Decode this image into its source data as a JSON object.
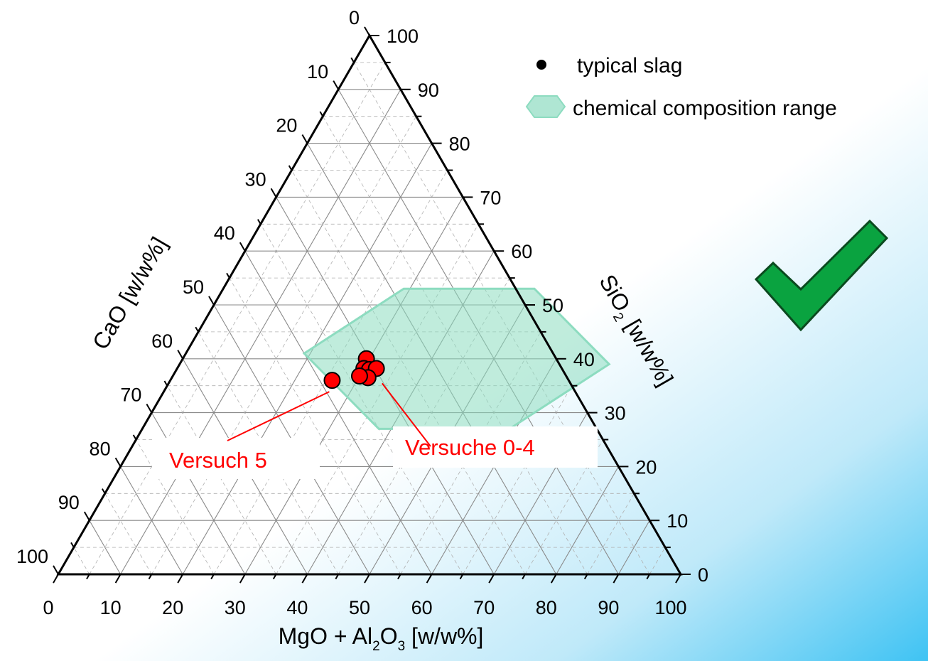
{
  "chart_data": {
    "type": "scatter",
    "subtype": "ternary",
    "axes": {
      "bottom": {
        "title_main": "MgO + Al",
        "sub1": "2",
        "mid": "O",
        "sub2": "3",
        "title_tail": " [w/w%]",
        "ticks": [
          "0",
          "10",
          "20",
          "30",
          "40",
          "50",
          "60",
          "70",
          "80",
          "90",
          "100"
        ],
        "range": [
          0,
          100
        ]
      },
      "left": {
        "title": "CaO [w/w%]",
        "ticks": [
          "0",
          "10",
          "20",
          "30",
          "40",
          "50",
          "60",
          "70",
          "80",
          "90",
          "100"
        ],
        "range": [
          0,
          100
        ]
      },
      "right": {
        "title_main": "SiO",
        "sub": "2",
        "title_tail": " [w/w%]",
        "ticks": [
          "0",
          "10",
          "20",
          "30",
          "40",
          "50",
          "60",
          "70",
          "80",
          "90",
          "100"
        ],
        "range": [
          0,
          100
        ]
      }
    },
    "grid": true,
    "legend": {
      "position": "top-right",
      "items": [
        {
          "label": "typical slag",
          "marker": "dot"
        },
        {
          "label": "chemical composition range",
          "marker": "hexagon"
        }
      ]
    },
    "composition_range": {
      "color": "#8ddcc0",
      "vertices": [
        {
          "mgo_al2o3": 50,
          "sio2": 53
        },
        {
          "mgo_al2o3": 69,
          "sio2": 39
        },
        {
          "mgo_al2o3": 59,
          "sio2": 27
        },
        {
          "mgo_al2o3": 38,
          "sio2": 27
        },
        {
          "mgo_al2o3": 19,
          "sio2": 41
        },
        {
          "mgo_al2o3": 29,
          "sio2": 53
        }
      ]
    },
    "series": [
      {
        "color": "#ff0000",
        "points": [
          {
            "mgo_al2o3": 29.5,
            "sio2": 40.0
          },
          {
            "mgo_al2o3": 30.0,
            "sio2": 38.2
          },
          {
            "mgo_al2o3": 31.0,
            "sio2": 38.0
          },
          {
            "mgo_al2o3": 32.0,
            "sio2": 38.2
          },
          {
            "mgo_al2o3": 31.5,
            "sio2": 36.5
          },
          {
            "mgo_al2o3": 30.0,
            "sio2": 36.8
          },
          {
            "mgo_al2o3": 26.0,
            "sio2": 36.0
          }
        ]
      }
    ],
    "annotations": [
      {
        "text": "Versuche 0-4",
        "color": "#ff0000",
        "points_to": {
          "mgo_al2o3": 31.5,
          "sio2": 36.5
        }
      },
      {
        "text": "Versuch 5",
        "color": "#ff0000",
        "points_to": {
          "mgo_al2o3": 26.0,
          "sio2": 36.0
        }
      }
    ]
  },
  "check_icon": "check-mark-icon",
  "colors": {
    "check_fill": "#0aa340",
    "background_gradient": "#3fc3f3",
    "axis": "#000000",
    "grid": "#888888"
  }
}
